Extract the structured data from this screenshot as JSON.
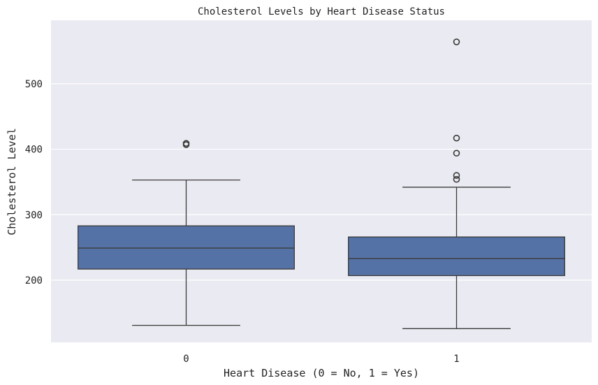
{
  "chart_data": {
    "type": "box",
    "title": "Cholesterol Levels by Heart Disease Status",
    "xlabel": "Heart Disease (0 = No, 1 = Yes)",
    "ylabel": "Cholesterol Level",
    "categories": [
      "0",
      "1"
    ],
    "ylim": [
      105,
      597
    ],
    "yticks": [
      200,
      300,
      400,
      500
    ],
    "grid": true,
    "colors": {
      "plot_bg": "#EAEAF2",
      "grid": "#FFFFFF",
      "box_fill": "#5572A6",
      "line": "#3A3A3A"
    },
    "boxes": [
      {
        "category": "0",
        "whisker_low": 131,
        "q1": 217,
        "median": 249,
        "q3": 283,
        "whisker_high": 353,
        "outliers": [
          407,
          409
        ]
      },
      {
        "category": "1",
        "whisker_low": 126,
        "q1": 207,
        "median": 233,
        "q3": 266,
        "whisker_high": 342,
        "outliers": [
          354,
          360,
          394,
          417,
          564
        ]
      }
    ]
  }
}
